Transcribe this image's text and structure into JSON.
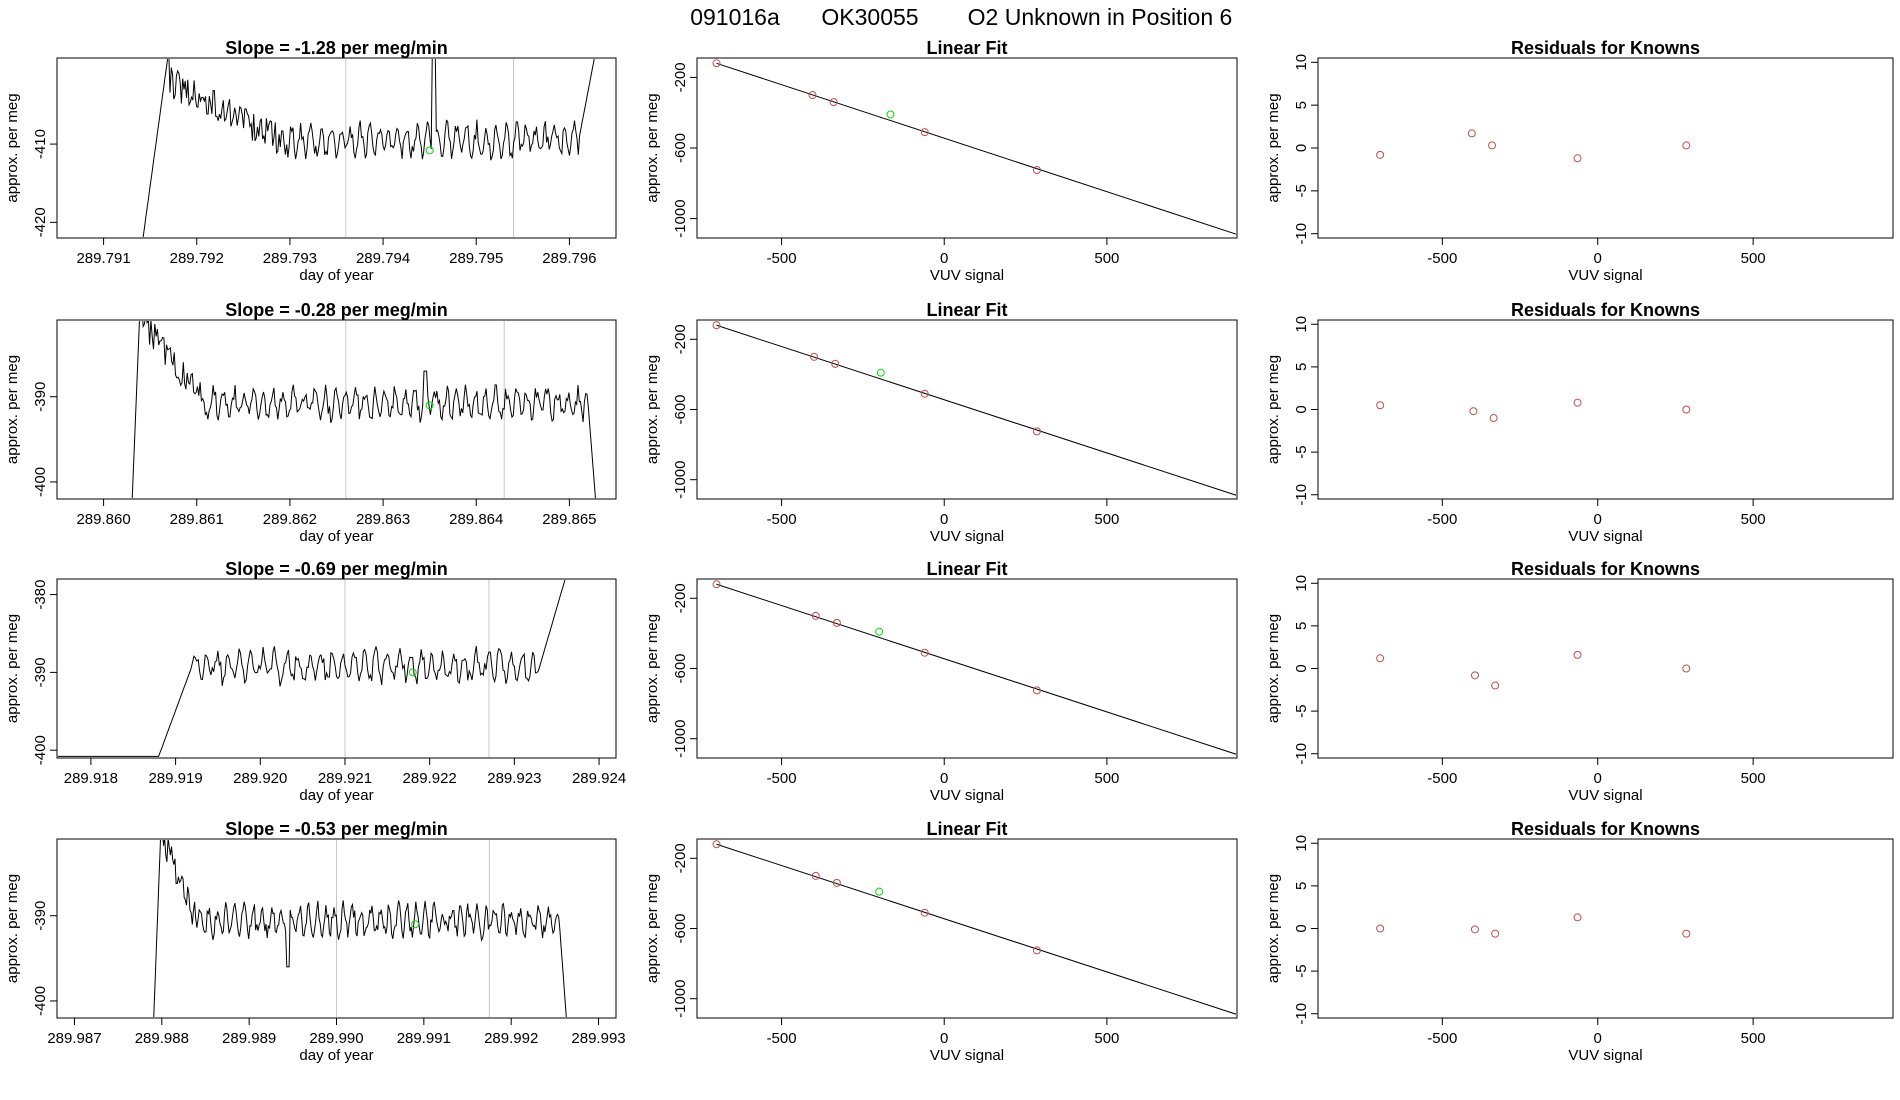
{
  "figure": {
    "title_parts": [
      "091016a",
      "OK30055",
      "O2 Unknown in Position  6"
    ]
  },
  "colors": {
    "line": "#000000",
    "known_point": "#c0504d",
    "unknown_point": "#00dd00",
    "vline": "#c8c8c8"
  },
  "chart_data": [
    {
      "row": 1,
      "panel": "timeseries",
      "type": "line",
      "title": "Slope =  -1.28  per meg/min",
      "xlabel": "day of year",
      "ylabel": "approx. per meg",
      "xlim": [
        289.7905,
        289.7965
      ],
      "ylim": [
        -422,
        -399
      ],
      "xticks": [
        289.791,
        289.792,
        289.793,
        289.794,
        289.795,
        289.796
      ],
      "xtick_labels": [
        "289.791",
        "289.792",
        "289.793",
        "289.794",
        "289.795",
        "289.796"
      ],
      "yticks": [
        -410,
        -420
      ],
      "ytick_labels": [
        "-410",
        "-420"
      ],
      "vlines": [
        289.7936,
        289.7954
      ],
      "unknown_point": {
        "x": 289.7945,
        "y": -410.8
      },
      "series": {
        "start": 289.7914,
        "end": 289.7963,
        "level": -409.5,
        "amp": 1.6,
        "phase": 0.3,
        "rise_shape": "high_start",
        "rise_end": 289.7917,
        "descend_end": 289.7929,
        "descend_from": -402,
        "end_rise_start": 289.7961,
        "spike_at": 289.79455,
        "spike_to": -396
      }
    },
    {
      "row": 1,
      "panel": "fit",
      "type": "scatter",
      "title": "Linear Fit",
      "xlabel": "VUV signal",
      "ylabel": "approx. per meg",
      "xlim": [
        -760,
        900
      ],
      "ylim": [
        -1110,
        -90
      ],
      "xticks": [
        -500,
        0,
        500
      ],
      "xtick_labels": [
        "-500",
        "0",
        "500"
      ],
      "yticks": [
        -200,
        -600,
        -1000
      ],
      "ytick_labels": [
        "-200",
        "-600",
        "-1000"
      ],
      "line": {
        "x": [
          -700,
          900
        ],
        "y": [
          -120,
          -1090
        ]
      },
      "knowns": [
        {
          "x": -700,
          "y": -120
        },
        {
          "x": -405,
          "y": -300
        },
        {
          "x": -340,
          "y": -340
        },
        {
          "x": -60,
          "y": -510
        },
        {
          "x": 285,
          "y": -725
        }
      ],
      "unknown": {
        "x": -165,
        "y": -410
      }
    },
    {
      "row": 1,
      "panel": "residuals",
      "type": "scatter",
      "title": "Residuals for Knowns",
      "xlabel": "VUV signal",
      "ylabel": "approx. per meg",
      "xlim": [
        -900,
        950
      ],
      "ylim": [
        -10.5,
        10.5
      ],
      "xticks": [
        -500,
        0,
        500
      ],
      "xtick_labels": [
        "-500",
        "0",
        "500"
      ],
      "yticks": [
        10,
        5,
        0,
        -5,
        -10
      ],
      "ytick_labels": [
        "10",
        "5",
        "0",
        "-5",
        "-10"
      ],
      "points": [
        {
          "x": -700,
          "y": -0.8
        },
        {
          "x": -405,
          "y": 1.7
        },
        {
          "x": -340,
          "y": 0.3
        },
        {
          "x": -65,
          "y": -1.2
        },
        {
          "x": 285,
          "y": 0.3
        }
      ]
    },
    {
      "row": 2,
      "panel": "timeseries",
      "type": "line",
      "title": "Slope =  -0.28  per meg/min",
      "xlabel": "day of year",
      "ylabel": "approx. per meg",
      "xlim": [
        289.8595,
        289.8655
      ],
      "ylim": [
        -402,
        -381
      ],
      "xticks": [
        289.86,
        289.861,
        289.862,
        289.863,
        289.864,
        289.865
      ],
      "xtick_labels": [
        "289.860",
        "289.861",
        "289.862",
        "289.863",
        "289.864",
        "289.865"
      ],
      "yticks": [
        -390,
        -400
      ],
      "ytick_labels": [
        "-390",
        "-400"
      ],
      "vlines": [
        289.8626,
        289.8643
      ],
      "unknown_point": {
        "x": 289.8635,
        "y": -391.0
      },
      "series": {
        "start": 289.8603,
        "end": 289.8653,
        "level": -390.8,
        "amp": 1.4,
        "phase": 1.1,
        "rise_shape": "high_start",
        "rise_end": 289.8604,
        "descend_end": 289.8611,
        "descend_from": -381,
        "end_rise_start": 289.8652,
        "end_drop": true,
        "spike_at": 289.86345,
        "spike_to": -387
      }
    },
    {
      "row": 2,
      "panel": "fit",
      "type": "scatter",
      "title": "Linear Fit",
      "xlabel": "VUV signal",
      "ylabel": "approx. per meg",
      "xlim": [
        -760,
        900
      ],
      "ylim": [
        -1110,
        -90
      ],
      "xticks": [
        -500,
        0,
        500
      ],
      "xtick_labels": [
        "-500",
        "0",
        "500"
      ],
      "yticks": [
        -200,
        -600,
        -1000
      ],
      "ytick_labels": [
        "-200",
        "-600",
        "-1000"
      ],
      "line": {
        "x": [
          -700,
          900
        ],
        "y": [
          -120,
          -1090
        ]
      },
      "knowns": [
        {
          "x": -700,
          "y": -120
        },
        {
          "x": -400,
          "y": -300
        },
        {
          "x": -335,
          "y": -340
        },
        {
          "x": -60,
          "y": -510
        },
        {
          "x": 285,
          "y": -725
        }
      ],
      "unknown": {
        "x": -195,
        "y": -390
      }
    },
    {
      "row": 2,
      "panel": "residuals",
      "type": "scatter",
      "title": "Residuals for Knowns",
      "xlabel": "VUV signal",
      "ylabel": "approx. per meg",
      "xlim": [
        -900,
        950
      ],
      "ylim": [
        -10.5,
        10.5
      ],
      "xticks": [
        -500,
        0,
        500
      ],
      "xtick_labels": [
        "-500",
        "0",
        "500"
      ],
      "yticks": [
        10,
        5,
        0,
        -5,
        -10
      ],
      "ytick_labels": [
        "10",
        "5",
        "0",
        "-5",
        "-10"
      ],
      "points": [
        {
          "x": -700,
          "y": 0.5
        },
        {
          "x": -400,
          "y": -0.2
        },
        {
          "x": -335,
          "y": -1.0
        },
        {
          "x": -65,
          "y": 0.8
        },
        {
          "x": 285,
          "y": 0.0
        }
      ]
    },
    {
      "row": 3,
      "panel": "timeseries",
      "type": "line",
      "title": "Slope =  -0.69  per meg/min",
      "xlabel": "day of year",
      "ylabel": "approx. per meg",
      "xlim": [
        289.9176,
        289.9242
      ],
      "ylim": [
        -401,
        -378
      ],
      "xticks": [
        289.918,
        289.919,
        289.92,
        289.921,
        289.922,
        289.923,
        289.924
      ],
      "xtick_labels": [
        "289.918",
        "289.919",
        "289.920",
        "289.921",
        "289.922",
        "289.923",
        "289.924"
      ],
      "yticks": [
        -380,
        -390,
        -400
      ],
      "ytick_labels": [
        "-380",
        "-390",
        "-400"
      ],
      "vlines": [
        289.921,
        289.9227
      ],
      "unknown_point": {
        "x": 289.9218,
        "y": -390.0
      },
      "series": {
        "start": 289.9176,
        "end": 289.9236,
        "level": -389.2,
        "amp": 1.6,
        "phase": 2.0,
        "rise_shape": "low_start",
        "flat_until": 289.9188,
        "rise_end": 289.9192,
        "end_rise_start": 289.9233,
        "end_rise_to": -378
      }
    },
    {
      "row": 3,
      "panel": "fit",
      "type": "scatter",
      "title": "Linear Fit",
      "xlabel": "VUV signal",
      "ylabel": "approx. per meg",
      "xlim": [
        -760,
        900
      ],
      "ylim": [
        -1110,
        -90
      ],
      "xticks": [
        -500,
        0,
        500
      ],
      "xtick_labels": [
        "-500",
        "0",
        "500"
      ],
      "yticks": [
        -200,
        -600,
        -1000
      ],
      "ytick_labels": [
        "-200",
        "-600",
        "-1000"
      ],
      "line": {
        "x": [
          -700,
          900
        ],
        "y": [
          -120,
          -1090
        ]
      },
      "knowns": [
        {
          "x": -700,
          "y": -120
        },
        {
          "x": -395,
          "y": -300
        },
        {
          "x": -330,
          "y": -340
        },
        {
          "x": -60,
          "y": -510
        },
        {
          "x": 285,
          "y": -725
        }
      ],
      "unknown": {
        "x": -200,
        "y": -390
      }
    },
    {
      "row": 3,
      "panel": "residuals",
      "type": "scatter",
      "title": "Residuals for Knowns",
      "xlabel": "VUV signal",
      "ylabel": "approx. per meg",
      "xlim": [
        -900,
        950
      ],
      "ylim": [
        -10.5,
        10.5
      ],
      "xticks": [
        -500,
        0,
        500
      ],
      "xtick_labels": [
        "-500",
        "0",
        "500"
      ],
      "yticks": [
        10,
        5,
        0,
        -5,
        -10
      ],
      "ytick_labels": [
        "10",
        "5",
        "0",
        "-5",
        "-10"
      ],
      "points": [
        {
          "x": -700,
          "y": 1.2
        },
        {
          "x": -395,
          "y": -0.8
        },
        {
          "x": -330,
          "y": -2.0
        },
        {
          "x": -65,
          "y": 1.6
        },
        {
          "x": 285,
          "y": 0.0
        }
      ]
    },
    {
      "row": 4,
      "panel": "timeseries",
      "type": "line",
      "title": "Slope =  -0.53  per meg/min",
      "xlabel": "day of year",
      "ylabel": "approx. per meg",
      "xlim": [
        289.9868,
        289.9932
      ],
      "ylim": [
        -402,
        -381
      ],
      "xticks": [
        289.987,
        289.988,
        289.989,
        289.99,
        289.991,
        289.992,
        289.993
      ],
      "xtick_labels": [
        "289.987",
        "289.988",
        "289.989",
        "289.990",
        "289.991",
        "289.992",
        "289.993"
      ],
      "yticks": [
        -390,
        -400
      ],
      "ytick_labels": [
        "-390",
        "-400"
      ],
      "vlines": [
        289.99,
        289.99175
      ],
      "unknown_point": {
        "x": 289.9909,
        "y": -391.0
      },
      "series": {
        "start": 289.9879,
        "end": 289.99265,
        "level": -390.6,
        "amp": 1.5,
        "phase": 0.7,
        "rise_shape": "high_start",
        "rise_end": 289.988,
        "descend_end": 289.9884,
        "descend_from": -381,
        "end_rise_start": 289.99255,
        "end_drop": true,
        "spike_at": 289.98945,
        "spike_to": -396
      }
    },
    {
      "row": 4,
      "panel": "fit",
      "type": "scatter",
      "title": "Linear Fit",
      "xlabel": "VUV signal",
      "ylabel": "approx. per meg",
      "xlim": [
        -760,
        900
      ],
      "ylim": [
        -1110,
        -90
      ],
      "xticks": [
        -500,
        0,
        500
      ],
      "xtick_labels": [
        "-500",
        "0",
        "500"
      ],
      "yticks": [
        -200,
        -600,
        -1000
      ],
      "ytick_labels": [
        "-200",
        "-600",
        "-1000"
      ],
      "line": {
        "x": [
          -700,
          900
        ],
        "y": [
          -120,
          -1090
        ]
      },
      "knowns": [
        {
          "x": -700,
          "y": -120
        },
        {
          "x": -395,
          "y": -300
        },
        {
          "x": -330,
          "y": -340
        },
        {
          "x": -60,
          "y": -510
        },
        {
          "x": 285,
          "y": -725
        }
      ],
      "unknown": {
        "x": -200,
        "y": -390
      }
    },
    {
      "row": 4,
      "panel": "residuals",
      "type": "scatter",
      "title": "Residuals for Knowns",
      "xlabel": "VUV signal",
      "ylabel": "approx. per meg",
      "xlim": [
        -900,
        950
      ],
      "ylim": [
        -10.5,
        10.5
      ],
      "xticks": [
        -500,
        0,
        500
      ],
      "xtick_labels": [
        "-500",
        "0",
        "500"
      ],
      "yticks": [
        10,
        5,
        0,
        -5,
        -10
      ],
      "ytick_labels": [
        "10",
        "5",
        "0",
        "-5",
        "-10"
      ],
      "points": [
        {
          "x": -700,
          "y": 0.0
        },
        {
          "x": -395,
          "y": -0.1
        },
        {
          "x": -330,
          "y": -0.6
        },
        {
          "x": -65,
          "y": 1.3
        },
        {
          "x": 285,
          "y": -0.6
        }
      ]
    }
  ]
}
